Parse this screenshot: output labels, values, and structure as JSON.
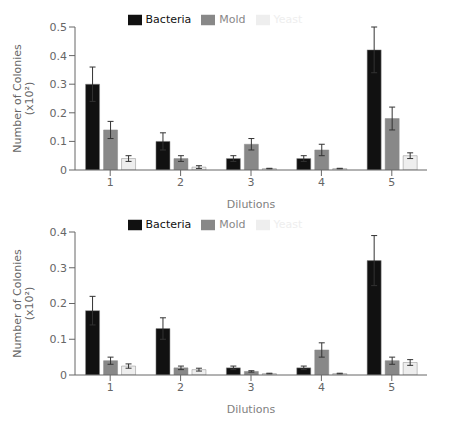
{
  "chart_data": [
    {
      "type": "bar",
      "x_label": "Dilutions",
      "y_label": "Number of Colonies\n(x10²)",
      "categories": [
        "1",
        "2",
        "3",
        "4",
        "5"
      ],
      "series": [
        {
          "name": "Bacteria",
          "color": "#111111",
          "values": [
            0.3,
            0.1,
            0.04,
            0.04,
            0.42
          ],
          "errors": [
            0.06,
            0.03,
            0.01,
            0.01,
            0.08
          ]
        },
        {
          "name": "Mold",
          "color": "#888888",
          "values": [
            0.14,
            0.04,
            0.09,
            0.07,
            0.18
          ],
          "errors": [
            0.03,
            0.01,
            0.02,
            0.02,
            0.04
          ]
        },
        {
          "name": "Yeast",
          "color": "#EEEEEE",
          "values": [
            0.04,
            0.01,
            0.005,
            0.005,
            0.05
          ],
          "errors": [
            0.01,
            0.005,
            0.001,
            0.001,
            0.01
          ]
        }
      ],
      "ylim": [
        0,
        0.5
      ],
      "yticks": [
        0,
        0.1,
        0.2,
        0.3,
        0.4,
        0.5
      ],
      "grid": false,
      "legend": "top"
    },
    {
      "type": "bar",
      "x_label": "Dilutions",
      "y_label": "Number of Colonies\n(x10²)",
      "categories": [
        "1",
        "2",
        "3",
        "4",
        "5"
      ],
      "series": [
        {
          "name": "Bacteria",
          "color": "#111111",
          "values": [
            0.18,
            0.13,
            0.02,
            0.02,
            0.32
          ],
          "errors": [
            0.04,
            0.03,
            0.005,
            0.005,
            0.07
          ]
        },
        {
          "name": "Mold",
          "color": "#888888",
          "values": [
            0.04,
            0.02,
            0.01,
            0.07,
            0.04
          ],
          "errors": [
            0.01,
            0.005,
            0.002,
            0.02,
            0.01
          ]
        },
        {
          "name": "Yeast",
          "color": "#EEEEEE",
          "values": [
            0.025,
            0.015,
            0.004,
            0.004,
            0.035
          ],
          "errors": [
            0.006,
            0.004,
            0.001,
            0.001,
            0.008
          ]
        }
      ],
      "ylim": [
        0,
        0.4
      ],
      "yticks": [
        0,
        0.1,
        0.2,
        0.3,
        0.4
      ],
      "grid": false,
      "legend": "top"
    }
  ]
}
